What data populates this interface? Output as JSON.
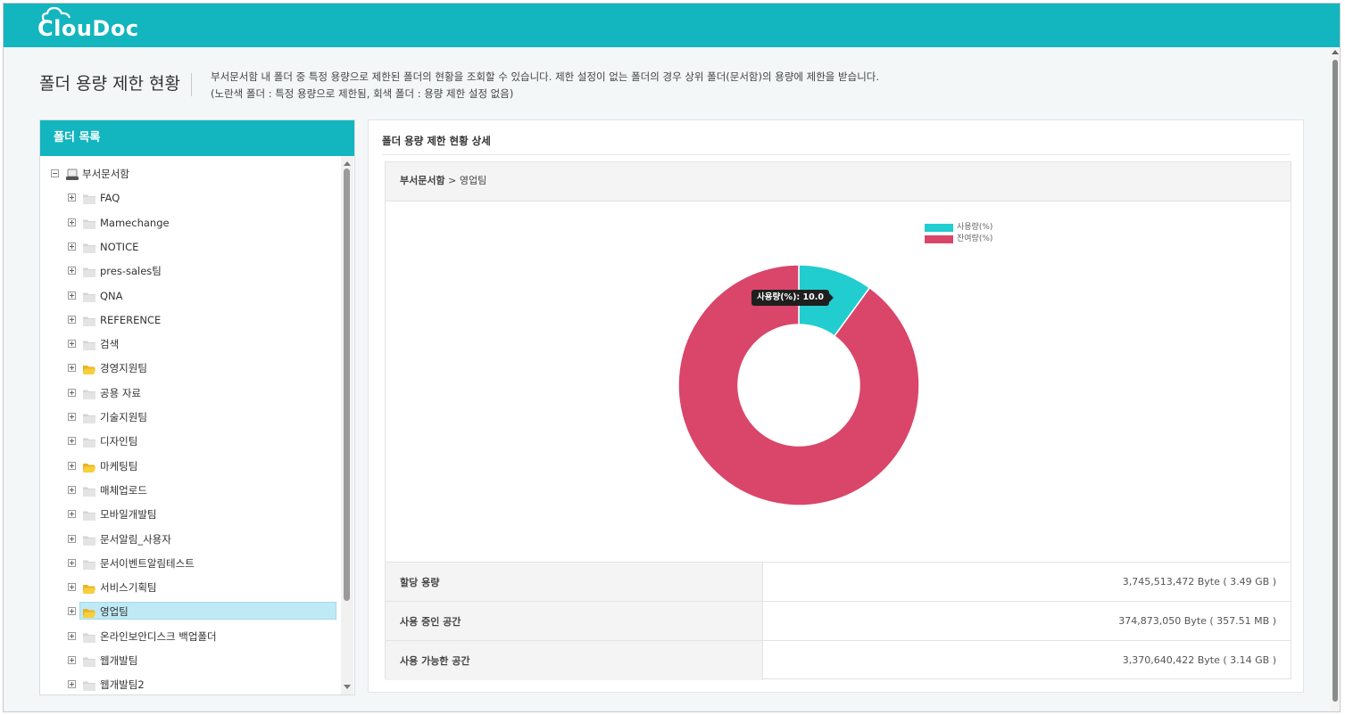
{
  "app": {
    "logo_text": "ClouDoc",
    "brand_color": "#13b5bf"
  },
  "header": {
    "title": "폴더 용량 제한 현황",
    "desc_line1": "부서문서함 내 폴더 중 특정 용량으로 제한된 폴더의 현황을 조회할 수 있습니다. 제한 설정이 없는 폴더의 경우 상위 폴더(문서함)의 용량에 제한을 받습니다.",
    "desc_line2": "(노란색 폴더 : 특정 용량으로 제한됨, 회색 폴더 : 용량 제한 설정 없음)"
  },
  "folder_panel": {
    "title": "폴더 목록",
    "root": {
      "label": "부서문서함",
      "icon": "drive-icon",
      "expanded": true
    },
    "items": [
      {
        "label": "FAQ",
        "limited": false
      },
      {
        "label": "Mamechange",
        "limited": false
      },
      {
        "label": "NOTICE",
        "limited": false
      },
      {
        "label": "pres-sales팀",
        "limited": false
      },
      {
        "label": "QNA",
        "limited": false
      },
      {
        "label": "REFERENCE",
        "limited": false
      },
      {
        "label": "검색",
        "limited": false
      },
      {
        "label": "경영지원팀",
        "limited": true
      },
      {
        "label": "공용 자료",
        "limited": false
      },
      {
        "label": "기술지원팀",
        "limited": false
      },
      {
        "label": "디자인팀",
        "limited": false
      },
      {
        "label": "마케팅팀",
        "limited": true
      },
      {
        "label": "매체업로드",
        "limited": false
      },
      {
        "label": "모바일개발팀",
        "limited": false
      },
      {
        "label": "문서알림_사용자",
        "limited": false
      },
      {
        "label": "문서이벤트알림테스트",
        "limited": false
      },
      {
        "label": "서비스기획팀",
        "limited": true
      },
      {
        "label": "영업팀",
        "limited": true,
        "selected": true
      },
      {
        "label": "온라인보안디스크 백업폴더",
        "limited": false
      },
      {
        "label": "웹개발팀",
        "limited": false
      },
      {
        "label": "웹개발팀2",
        "limited": false
      }
    ]
  },
  "detail": {
    "title": "폴더 용량 제한 현황 상세",
    "breadcrumb_root": "부서문서함",
    "breadcrumb_sep": ">",
    "breadcrumb_current": "영업팀",
    "rows": [
      {
        "label": "할당 용량",
        "value": "3,745,513,472 Byte ( 3.49 GB )"
      },
      {
        "label": "사용 중인 공간",
        "value": "374,873,050 Byte ( 357.51 MB )"
      },
      {
        "label": "사용 가능한 공간",
        "value": "3,370,640,422 Byte ( 3.14 GB )"
      }
    ]
  },
  "chart_data": {
    "type": "pie",
    "donut": true,
    "legend_position": "top-right",
    "series": [
      {
        "name": "사용량(%)",
        "value": 10.0,
        "color": "#22cdd0"
      },
      {
        "name": "잔여량(%)",
        "value": 90.0,
        "color": "#d9466a"
      }
    ],
    "tooltip": {
      "text": "사용량(%): 10.0"
    }
  }
}
